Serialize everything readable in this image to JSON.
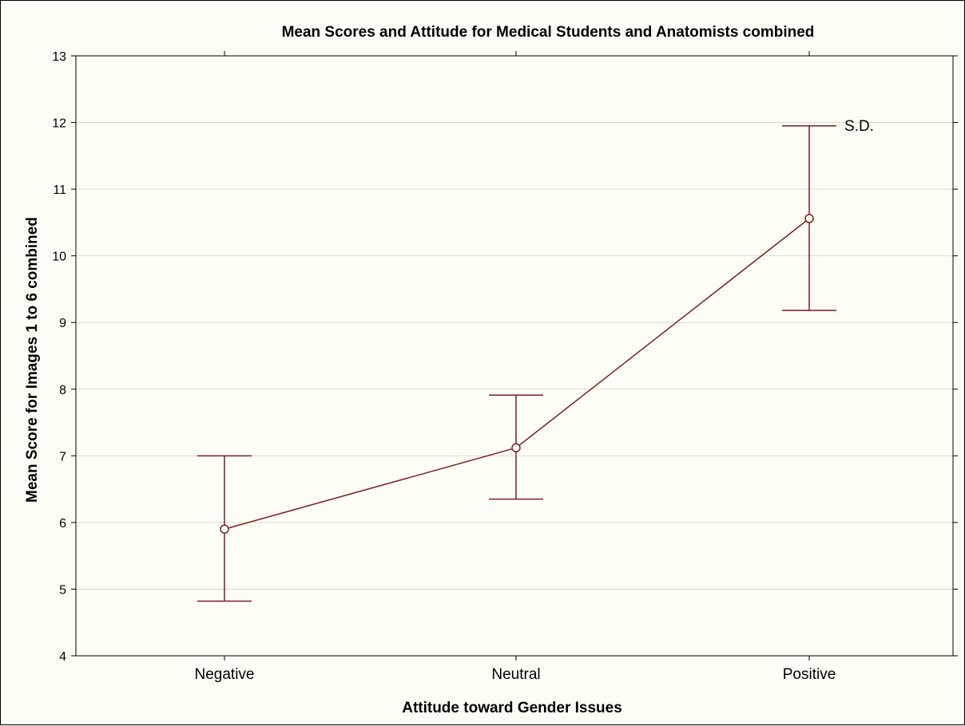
{
  "chart_data": {
    "type": "line",
    "title": "Mean Scores and Attitude for Medical Students and Anatomists combined",
    "xlabel": "Attitude toward Gender Issues",
    "ylabel": "Mean Score for Images 1 to 6 combined",
    "categories": [
      "Negative",
      "Neutral",
      "Positive"
    ],
    "series": [
      {
        "values": [
          5.9,
          7.12,
          10.56
        ],
        "error_low": [
          4.82,
          6.35,
          9.18
        ],
        "error_high": [
          7.0,
          7.91,
          11.95
        ]
      }
    ],
    "ylim": [
      4,
      13
    ],
    "yticks": [
      "4",
      "5",
      "6",
      "7",
      "8",
      "9",
      "10",
      "11",
      "12",
      "13"
    ],
    "grid": true,
    "annotation": "S.D.",
    "colors": {
      "series": "#7b1f1f",
      "background": "#fffef6",
      "grid": "#d9d9c9",
      "axis": "#000000"
    }
  }
}
